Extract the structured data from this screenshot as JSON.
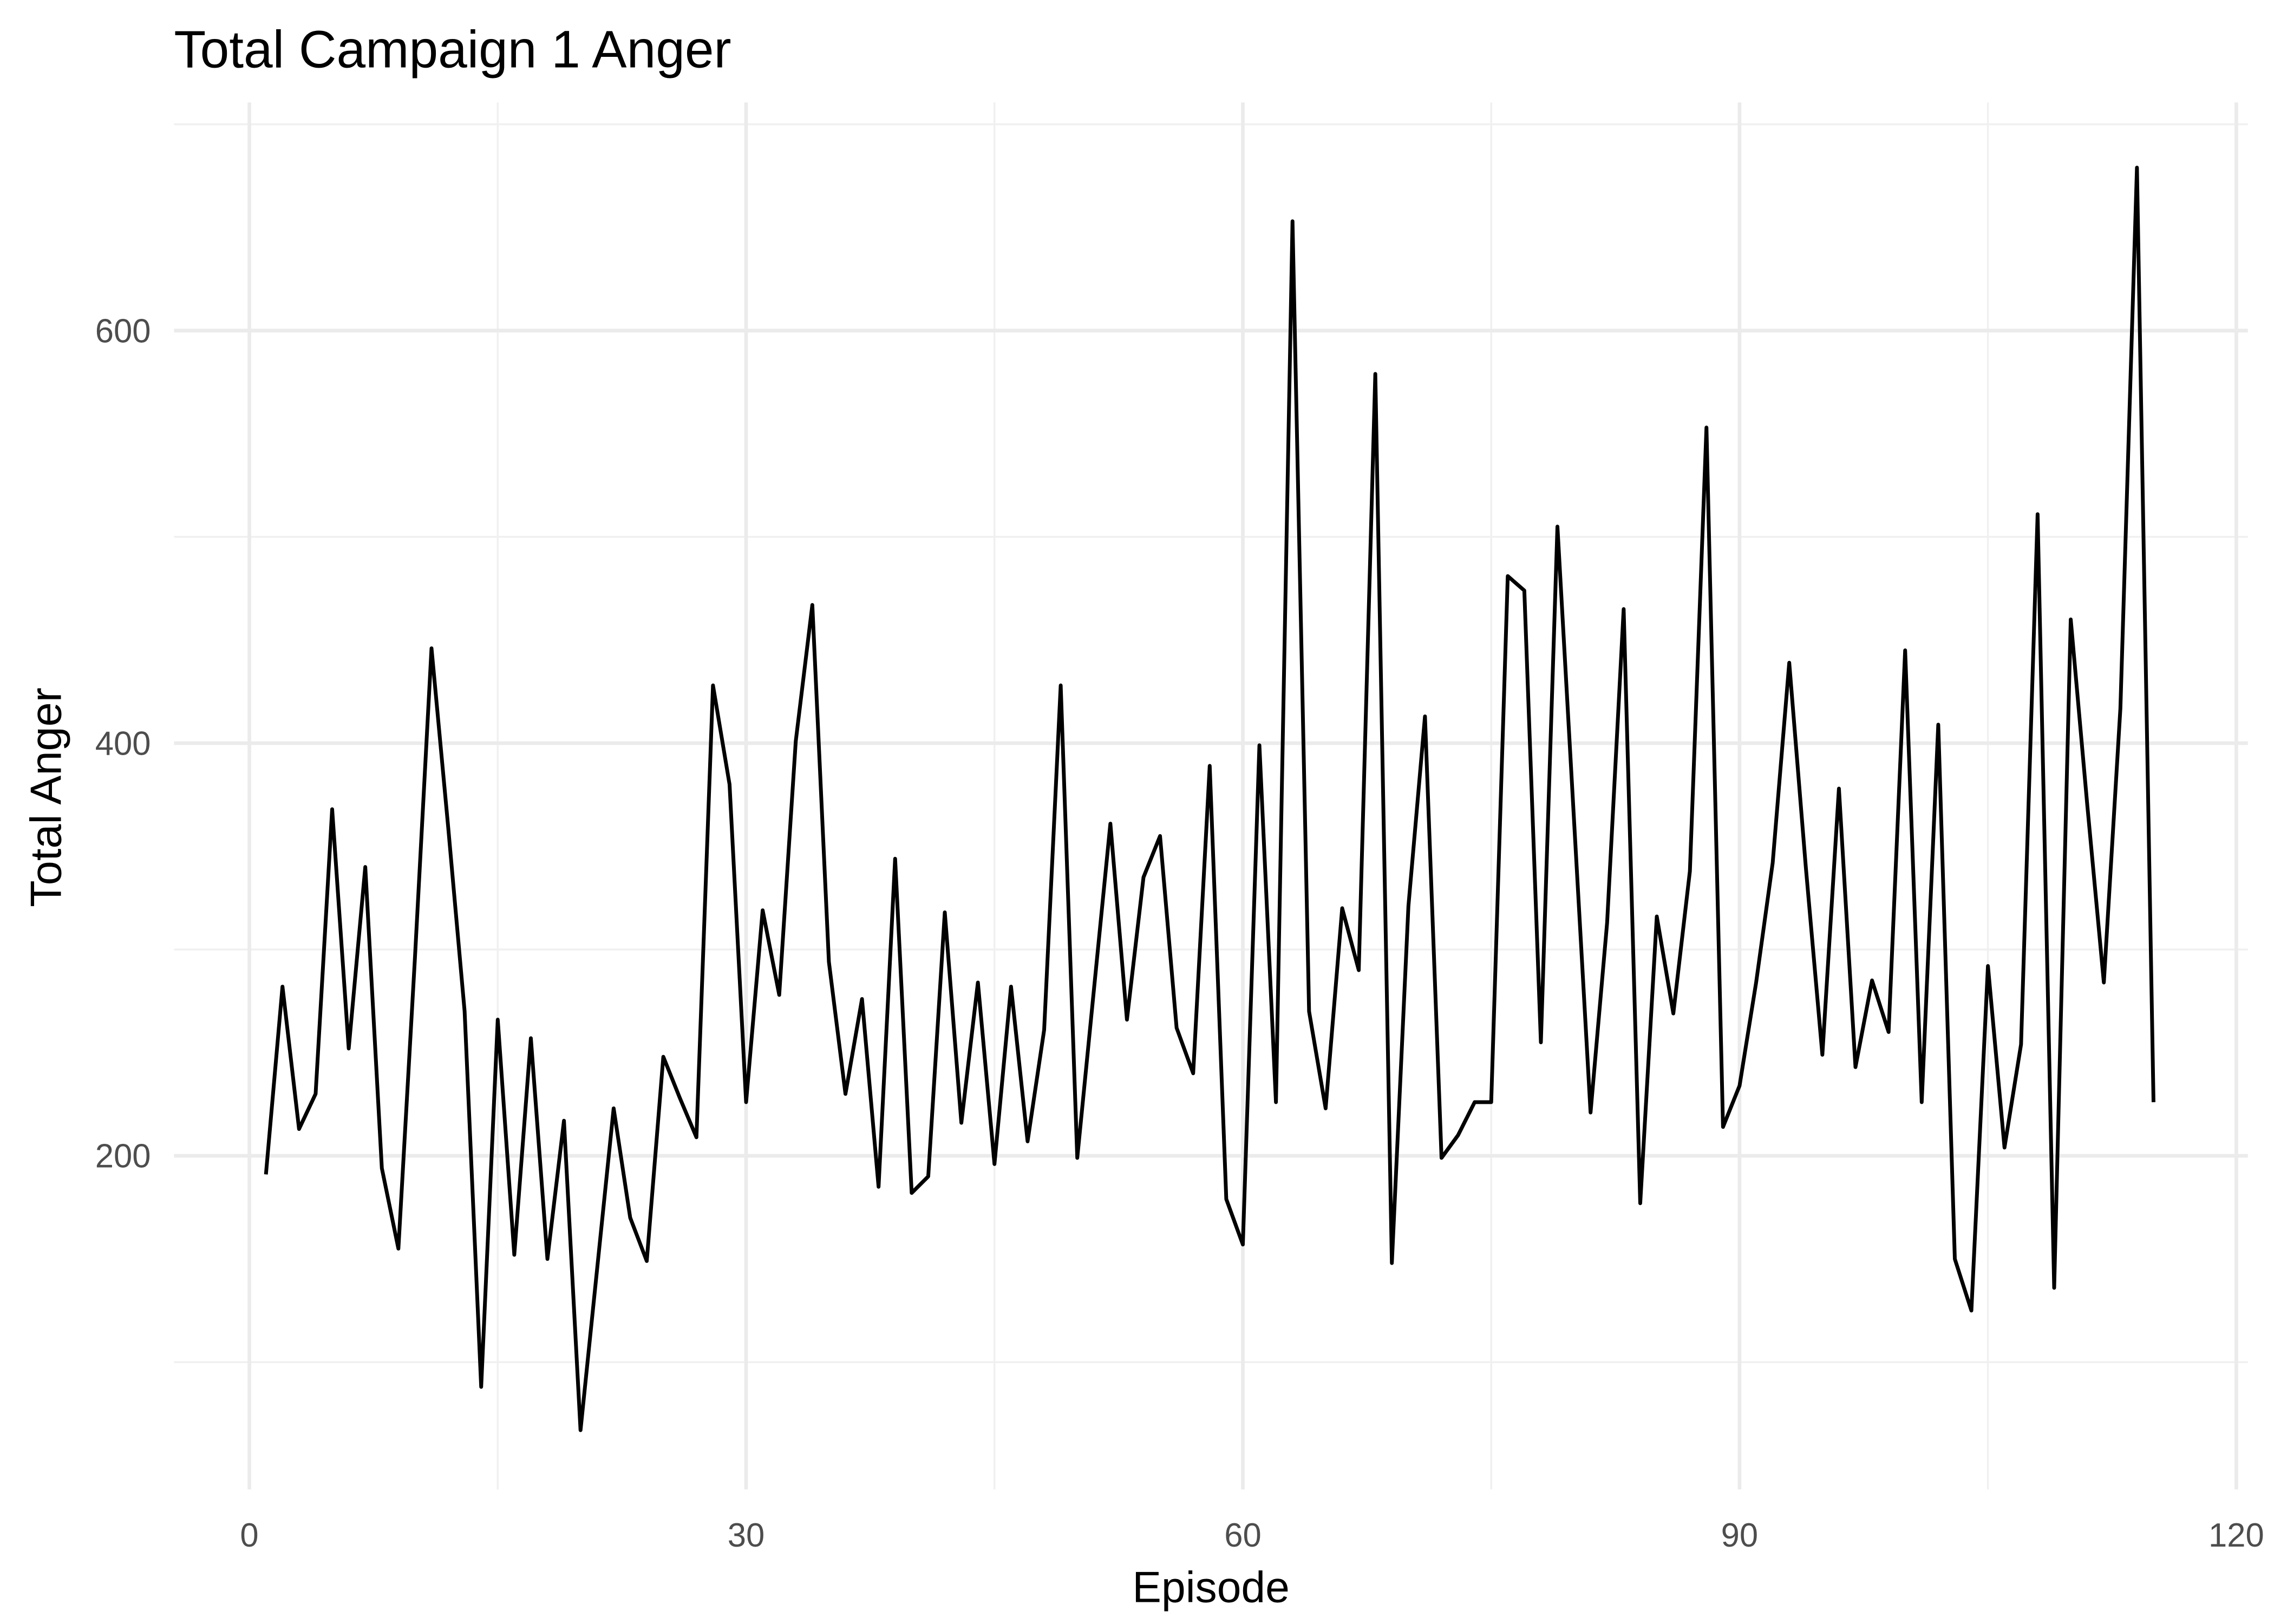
{
  "chart_data": {
    "type": "line",
    "title": "Total Campaign 1 Anger",
    "x_label": "Episode",
    "y_label": "Total Anger",
    "x": [
      1,
      2,
      3,
      4,
      5,
      6,
      7,
      8,
      9,
      10,
      11,
      12,
      13,
      14,
      15,
      16,
      17,
      18,
      19,
      20,
      21,
      22,
      23,
      24,
      25,
      26,
      27,
      28,
      29,
      30,
      31,
      32,
      33,
      34,
      35,
      36,
      37,
      38,
      39,
      40,
      41,
      42,
      43,
      44,
      45,
      46,
      47,
      48,
      49,
      50,
      51,
      52,
      53,
      54,
      55,
      56,
      57,
      58,
      59,
      60,
      61,
      62,
      63,
      64,
      65,
      66,
      67,
      68,
      69,
      70,
      71,
      72,
      73,
      74,
      75,
      76,
      77,
      78,
      79,
      80,
      81,
      82,
      83,
      84,
      85,
      86,
      87,
      88,
      89,
      90,
      91,
      92,
      93,
      94,
      95,
      96,
      97,
      98,
      99,
      100,
      101,
      102,
      103,
      104,
      105,
      106,
      107,
      108,
      109,
      110,
      111,
      112,
      113,
      114,
      115
    ],
    "series": [
      {
        "name": "Total Anger",
        "color": "#000000",
        "values": [
          191,
          282,
          213,
          230,
          368,
          252,
          340,
          194,
          155,
          296,
          446,
          360,
          270,
          88,
          266,
          152,
          257,
          150,
          217,
          67,
          145,
          223,
          170,
          149,
          248,
          228,
          209,
          428,
          380,
          226,
          319,
          278,
          401,
          467,
          294,
          230,
          276,
          185,
          344,
          182,
          190,
          318,
          216,
          284,
          196,
          282,
          207,
          261,
          428,
          199,
          280,
          361,
          266,
          335,
          355,
          262,
          240,
          389,
          179,
          157,
          399,
          226,
          653,
          270,
          223,
          320,
          290,
          579,
          148,
          321,
          413,
          199,
          210,
          226,
          226,
          481,
          474,
          255,
          505,
          363,
          221,
          313,
          465,
          177,
          316,
          269,
          338,
          553,
          214,
          234,
          284,
          342,
          439,
          340,
          249,
          378,
          243,
          285,
          260,
          445,
          226,
          409,
          150,
          125,
          292,
          204,
          254,
          511,
          136,
          460,
          370,
          284,
          417,
          679,
          226
        ]
      }
    ],
    "xlim": [
      -4.55,
      120.7
    ],
    "xticks": [
      0,
      30,
      60,
      90,
      120
    ],
    "minor_xticks": [
      15,
      45,
      75,
      105
    ],
    "ylim": [
      38.3,
      710.6
    ],
    "yticks": [
      200,
      400,
      600
    ],
    "minor_yticks": [
      100,
      300,
      500,
      700
    ],
    "grid": true
  }
}
